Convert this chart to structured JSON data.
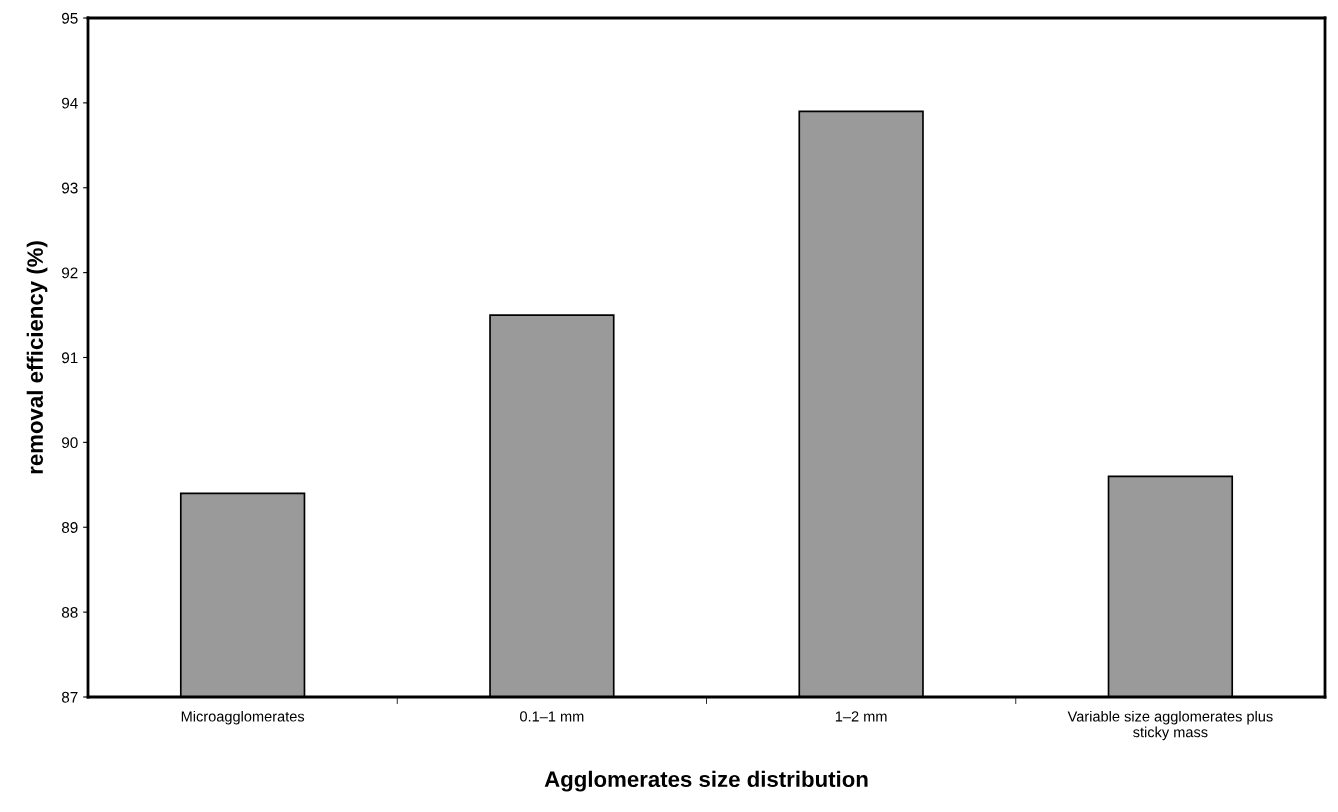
{
  "chart_data": {
    "type": "bar",
    "xlabel": "Agglomerates size distribution",
    "ylabel": "removal efficiency (%)",
    "categories": [
      "Microagglomerates",
      "0.1–1 mm",
      "1–2 mm",
      "Variable size agglomerates plus\nsticky mass"
    ],
    "values": [
      89.4,
      91.5,
      93.9,
      89.6
    ],
    "color": "#9a9a9a",
    "ylim": [
      87,
      95
    ],
    "yticks": [
      87,
      88,
      89,
      90,
      91,
      92,
      93,
      94,
      95
    ],
    "grid": false,
    "legend": false
  }
}
